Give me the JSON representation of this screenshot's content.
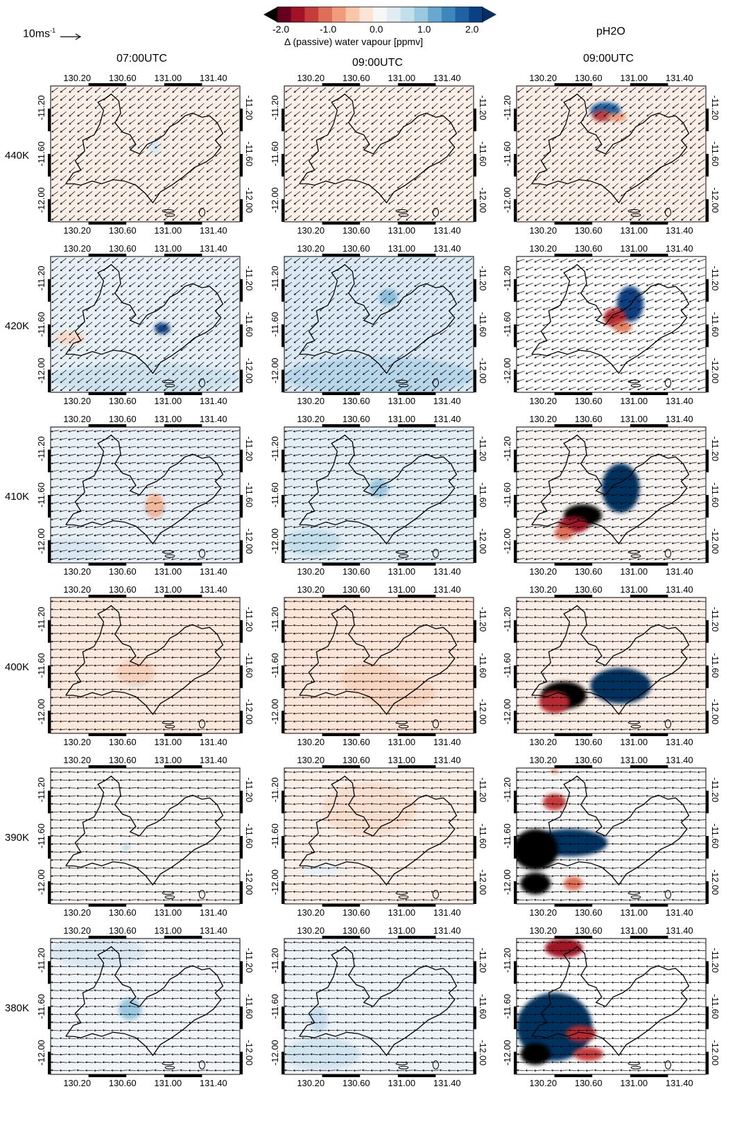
{
  "legend": {
    "wind_ref_label": "10ms",
    "wind_ref_superscript": "-1",
    "variable_label": "pH2O"
  },
  "colorbar": {
    "label": "Δ (passive) water vapour [ppmv]",
    "ticks": [
      "-2.0",
      "-1.0",
      "0.0",
      "1.0",
      "2.0"
    ],
    "colors": [
      "#67001f",
      "#a11228",
      "#c43c3c",
      "#de6e57",
      "#f09c7b",
      "#f9c6ac",
      "#fbe4d6",
      "#f7f7f7",
      "#e1edf3",
      "#c4dfec",
      "#9ac8e0",
      "#69a9cf",
      "#3d87bf",
      "#1e62a4",
      "#0b4182"
    ],
    "under_color": "#000000",
    "over_color": "#053061"
  },
  "columns": [
    {
      "time": "07:00UTC"
    },
    {
      "time": "09:00UTC"
    },
    {
      "time": "09:00UTC"
    }
  ],
  "rows": [
    {
      "level": "440K"
    },
    {
      "level": "420K"
    },
    {
      "level": "410K"
    },
    {
      "level": "400K"
    },
    {
      "level": "390K"
    },
    {
      "level": "380K"
    }
  ],
  "axes": {
    "lon_ticks": [
      "130.20",
      "130.60",
      "131.00",
      "131.40"
    ],
    "lat_ticks": [
      "-11.20",
      "-11.60",
      "-12.00"
    ]
  },
  "anomalies": [
    [
      {
        "bg": "#fbeee6",
        "blobs": [
          [
            0.55,
            0.45,
            0.03,
            0.06,
            "#dce9f2"
          ]
        ]
      },
      {
        "bg": "#fcf0e9",
        "blobs": []
      },
      {
        "bg": "#fbeee6",
        "blobs": [
          [
            0.47,
            0.18,
            0.08,
            0.06,
            "#1e62a4"
          ],
          [
            0.45,
            0.22,
            0.05,
            0.04,
            "#c43c3c"
          ],
          [
            0.53,
            0.23,
            0.05,
            0.03,
            "#f09c7b"
          ]
        ]
      }
    ],
    [
      {
        "bg": "#e7f0f6",
        "blobs": [
          [
            0.59,
            0.53,
            0.04,
            0.04,
            "#0b4182"
          ],
          [
            0.5,
            0.9,
            0.5,
            0.12,
            "#cfe3ef"
          ],
          [
            0.1,
            0.6,
            0.08,
            0.05,
            "#f6d9c9"
          ]
        ]
      },
      {
        "bg": "#dae9f3",
        "blobs": [
          [
            0.55,
            0.3,
            0.05,
            0.06,
            "#8cbfdc"
          ],
          [
            0.5,
            0.88,
            0.5,
            0.14,
            "#b7d6ea"
          ]
        ]
      },
      {
        "bg": "#ffffff",
        "blobs": [
          [
            0.6,
            0.35,
            0.07,
            0.13,
            "#0b4182"
          ],
          [
            0.52,
            0.45,
            0.06,
            0.07,
            "#b52b32"
          ],
          [
            0.56,
            0.52,
            0.05,
            0.04,
            "#e38062"
          ]
        ]
      }
    ],
    [
      {
        "bg": "#e9f1f7",
        "blobs": [
          [
            0.55,
            0.6,
            0.04,
            0.04,
            "#1e62a4"
          ],
          [
            0.55,
            0.58,
            0.05,
            0.09,
            "#f3b99b"
          ],
          [
            0.1,
            0.9,
            0.2,
            0.08,
            "#d8e7f1"
          ]
        ]
      },
      {
        "bg": "#e4eef5",
        "blobs": [
          [
            0.5,
            0.45,
            0.05,
            0.07,
            "#9ac8e0"
          ],
          [
            0.15,
            0.85,
            0.15,
            0.1,
            "#c4dfec"
          ]
        ]
      },
      {
        "bg": "#f7f4f1",
        "blobs": [
          [
            0.55,
            0.45,
            0.1,
            0.18,
            "#053061"
          ],
          [
            0.35,
            0.65,
            0.1,
            0.08,
            "#000000"
          ],
          [
            0.3,
            0.72,
            0.08,
            0.06,
            "#a11228"
          ],
          [
            0.25,
            0.78,
            0.05,
            0.05,
            "#de6e57"
          ]
        ]
      }
    ],
    [
      {
        "bg": "#fbe9de",
        "blobs": [
          [
            0.45,
            0.6,
            0.06,
            0.06,
            "#dce9f2"
          ],
          [
            0.45,
            0.55,
            0.1,
            0.1,
            "#f6d2bd"
          ]
        ]
      },
      {
        "bg": "#fbe6d9",
        "blobs": [
          [
            0.45,
            0.6,
            0.15,
            0.12,
            "#f8d5c1"
          ],
          [
            0.6,
            0.7,
            0.2,
            0.12,
            "#f8d5c1"
          ]
        ]
      },
      {
        "bg": "#fbeee6",
        "blobs": [
          [
            0.55,
            0.65,
            0.16,
            0.13,
            "#053061"
          ],
          [
            0.25,
            0.72,
            0.12,
            0.1,
            "#000000"
          ],
          [
            0.2,
            0.77,
            0.08,
            0.08,
            "#b52b32"
          ]
        ]
      }
    ],
    [
      {
        "bg": "#f7f5f3",
        "blobs": [
          [
            0.4,
            0.58,
            0.02,
            0.03,
            "#c4dfec"
          ]
        ]
      },
      {
        "bg": "#fbefe7",
        "blobs": [
          [
            0.45,
            0.3,
            0.25,
            0.2,
            "#f9dfd0"
          ],
          [
            0.2,
            0.75,
            0.1,
            0.05,
            "#eaf2f7"
          ]
        ]
      },
      {
        "bg": "#f7f7f7",
        "blobs": [
          [
            0.28,
            0.55,
            0.2,
            0.1,
            "#053061"
          ],
          [
            0.1,
            0.6,
            0.12,
            0.15,
            "#000000"
          ],
          [
            0.1,
            0.85,
            0.08,
            0.08,
            "#000000"
          ],
          [
            0.2,
            0.25,
            0.06,
            0.06,
            "#c43c3c"
          ],
          [
            0.3,
            0.85,
            0.05,
            0.05,
            "#de6e57"
          ],
          [
            0.2,
            0.02,
            0.02,
            0.02,
            "#f09c7b"
          ]
        ]
      }
    ],
    [
      {
        "bg": "#f2f5f8",
        "blobs": [
          [
            0.42,
            0.52,
            0.06,
            0.08,
            "#9ac8e0"
          ],
          [
            0.25,
            0.1,
            0.25,
            0.12,
            "#dbe8f2"
          ]
        ]
      },
      {
        "bg": "#eef3f7",
        "blobs": [
          [
            0.2,
            0.85,
            0.2,
            0.12,
            "#d3e5f0"
          ],
          [
            0.18,
            0.6,
            0.05,
            0.1,
            "#c9e0ee"
          ]
        ]
      },
      {
        "bg": "#ffffff",
        "blobs": [
          [
            0.2,
            0.65,
            0.2,
            0.25,
            "#053061"
          ],
          [
            0.25,
            0.07,
            0.1,
            0.07,
            "#a11228"
          ],
          [
            0.34,
            0.7,
            0.08,
            0.06,
            "#b52b32"
          ],
          [
            0.38,
            0.85,
            0.08,
            0.05,
            "#c43c3c"
          ],
          [
            0.1,
            0.85,
            0.08,
            0.08,
            "#000000"
          ]
        ]
      }
    ]
  ]
}
